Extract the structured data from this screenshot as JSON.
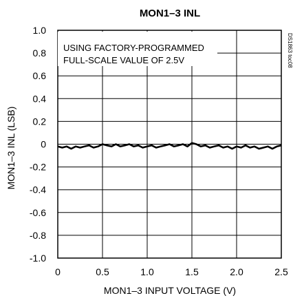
{
  "chart_data": {
    "type": "line",
    "title": "MON1–3 INL",
    "xlabel": "MON1–3 INPUT VOLTAGE (V)",
    "ylabel": "MON1–3 INL (LSB)",
    "xlim": [
      0,
      2.5
    ],
    "ylim": [
      -1.0,
      1.0
    ],
    "x_ticks": [
      0,
      0.5,
      1.0,
      1.5,
      2.0,
      2.5
    ],
    "x_tick_labels": [
      "0",
      "0.5",
      "1.0",
      "1.5",
      "2.0",
      "2.5"
    ],
    "y_ticks": [
      1.0,
      0.8,
      0.6,
      0.4,
      0.2,
      0,
      -0.2,
      -0.4,
      -0.6,
      -0.8,
      -1.0
    ],
    "y_tick_labels": [
      "1.0",
      "0.8",
      "0.6",
      "0.4",
      "0.2",
      "0",
      "-0.2",
      "-0.4",
      "-0.6",
      "-0.8",
      "-1.0"
    ],
    "grid": true,
    "annotation": [
      "USING FACTORY-PROGRAMMED",
      "FULL-SCALE VALUE OF 2.5V"
    ],
    "figure_code": "DS1863 toc08",
    "series": [
      {
        "x": [
          0.0,
          0.05,
          0.1,
          0.15,
          0.2,
          0.25,
          0.3,
          0.35,
          0.4,
          0.45,
          0.5,
          0.55,
          0.6,
          0.65,
          0.7,
          0.75,
          0.8,
          0.85,
          0.9,
          0.95,
          1.0,
          1.05,
          1.1,
          1.15,
          1.2,
          1.25,
          1.3,
          1.35,
          1.4,
          1.45,
          1.5,
          1.55,
          1.6,
          1.65,
          1.7,
          1.75,
          1.8,
          1.85,
          1.9,
          1.95,
          2.0,
          2.05,
          2.1,
          2.15,
          2.2,
          2.25,
          2.3,
          2.35,
          2.4,
          2.45,
          2.5
        ],
        "values": [
          -0.02,
          -0.03,
          -0.02,
          -0.04,
          -0.02,
          -0.03,
          -0.02,
          -0.01,
          -0.03,
          -0.02,
          0.0,
          -0.01,
          -0.02,
          0.0,
          -0.02,
          -0.01,
          0.0,
          -0.02,
          -0.01,
          -0.03,
          -0.02,
          -0.01,
          -0.03,
          -0.02,
          -0.01,
          0.0,
          -0.02,
          -0.01,
          0.0,
          -0.02,
          0.01,
          0.0,
          -0.02,
          -0.01,
          -0.03,
          -0.02,
          -0.01,
          -0.03,
          -0.02,
          -0.04,
          -0.02,
          -0.03,
          -0.01,
          -0.03,
          -0.02,
          -0.04,
          -0.03,
          -0.02,
          -0.04,
          -0.02,
          -0.01
        ]
      }
    ]
  },
  "colors": {
    "line": "#000000",
    "grid": "#000000",
    "background": "#ffffff"
  }
}
